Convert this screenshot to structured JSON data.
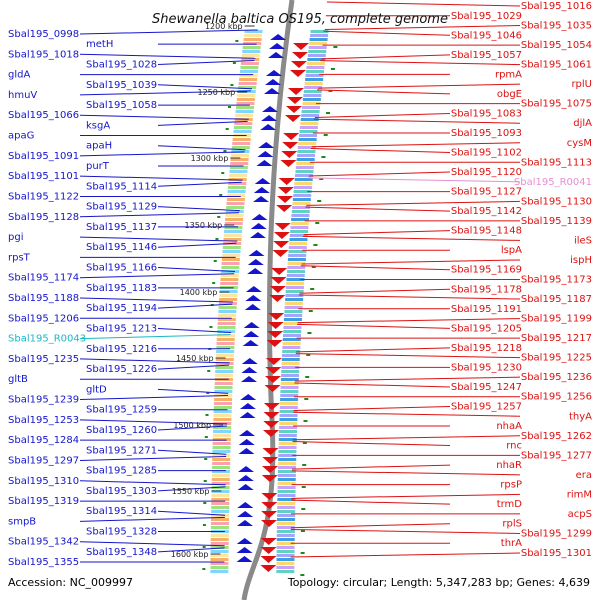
{
  "title": "Shewanella baltica OS195, complete genome",
  "accession_text": "Accession: NC_009997",
  "summary_text": "Topology: circular; Length: 5,347,283 bp; Genes: 4,639",
  "colors": {
    "forward_strand": "#1515cc",
    "reverse_strand": "#dd1111",
    "rna_forward": "#19b8c8",
    "rna_reverse": "#e58fd3",
    "backbone": "#8a8a8a",
    "tick_marker": "#1a8a1a"
  },
  "ticks": [
    "1200 kbp",
    "1250 kbp",
    "1300 kbp",
    "1350 kbp",
    "1400 kbp",
    "1450 kbp",
    "1500 kbp",
    "1550 kbp",
    "1600 kbp"
  ],
  "left_labels": [
    "Sbal195_0998",
    "metH",
    "Sbal195_1018",
    "Sbal195_1028",
    "gldA",
    "Sbal195_1039",
    "hmuV",
    "Sbal195_1058",
    "Sbal195_1066",
    "ksgA",
    "apaG",
    "apaH",
    "Sbal195_1091",
    "purT",
    "Sbal195_1101",
    "Sbal195_1114",
    "Sbal195_1122",
    "Sbal195_1129",
    "Sbal195_1128",
    "Sbal195_1137",
    "pgi",
    "Sbal195_1146",
    "rpsT",
    "Sbal195_1166",
    "Sbal195_1174",
    "Sbal195_1183",
    "Sbal195_1188",
    "Sbal195_1194",
    "Sbal195_1206",
    "Sbal195_1213",
    "Sbal195_R0043",
    "Sbal195_1216",
    "Sbal195_1235",
    "Sbal195_1226",
    "gltB",
    "gltD",
    "Sbal195_1239",
    "Sbal195_1259",
    "Sbal195_1253",
    "Sbal195_1260",
    "Sbal195_1284",
    "Sbal195_1271",
    "Sbal195_1297",
    "Sbal195_1285",
    "Sbal195_1310",
    "Sbal195_1303",
    "Sbal195_1319",
    "Sbal195_1314",
    "smpB",
    "Sbal195_1328",
    "Sbal195_1342",
    "Sbal195_1348",
    "Sbal195_1355"
  ],
  "right_labels": [
    "Sbal195_1016",
    "Sbal195_1029",
    "Sbal195_1035",
    "Sbal195_1046",
    "Sbal195_1054",
    "Sbal195_1057",
    "Sbal195_1061",
    "rpmA",
    "rplU",
    "obgE",
    "Sbal195_1075",
    "Sbal195_1083",
    "djlA",
    "Sbal195_1093",
    "cysM",
    "Sbal195_1102",
    "Sbal195_1113",
    "Sbal195_1120",
    "Sbal195_R0041",
    "Sbal195_1127",
    "Sbal195_1130",
    "Sbal195_1142",
    "Sbal195_1139",
    "Sbal195_1148",
    "ileS",
    "lspA",
    "ispH",
    "Sbal195_1169",
    "Sbal195_1173",
    "Sbal195_1178",
    "Sbal195_1187",
    "Sbal195_1191",
    "Sbal195_1199",
    "Sbal195_1205",
    "Sbal195_1217",
    "Sbal195_1218",
    "Sbal195_1225",
    "Sbal195_1230",
    "Sbal195_1236",
    "Sbal195_1247",
    "Sbal195_1256",
    "Sbal195_1257",
    "thyA",
    "nhaA",
    "Sbal195_1262",
    "rnc",
    "Sbal195_1277",
    "nhaR",
    "era",
    "rpsP",
    "rimM",
    "trmD",
    "acpS",
    "rplS",
    "Sbal195_1299",
    "thrA",
    "Sbal195_1301"
  ]
}
